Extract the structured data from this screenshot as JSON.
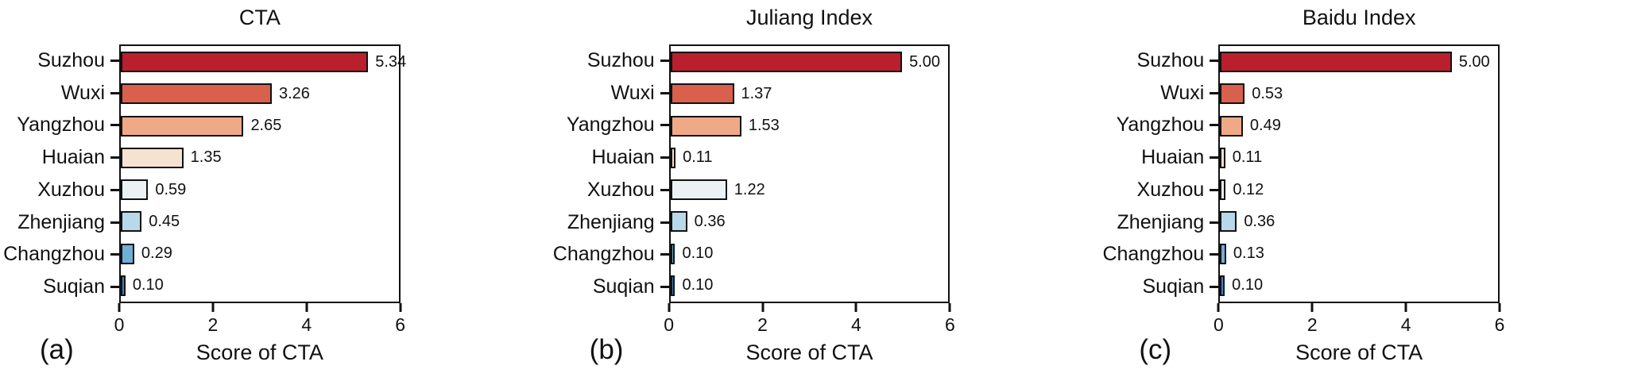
{
  "palette": {
    "bar_colors": [
      "#b91f2c",
      "#d8604d",
      "#efa987",
      "#f6e2d1",
      "#ebf2f5",
      "#b7d9e9",
      "#6fb0d6",
      "#3d86c0"
    ],
    "bar_border": "#111111",
    "axis_color": "#111111"
  },
  "chart_data": [
    {
      "id": "a",
      "type": "bar",
      "orientation": "horizontal",
      "title": "CTA",
      "panel_label": "(a)",
      "categories": [
        "Suzhou",
        "Wuxi",
        "Yangzhou",
        "Huaian",
        "Xuzhou",
        "Zhenjiang",
        "Changzhou",
        "Suqian"
      ],
      "values": [
        5.34,
        3.26,
        2.65,
        1.35,
        0.59,
        0.45,
        0.29,
        0.1
      ],
      "value_labels": [
        "5.34",
        "3.26",
        "2.65",
        "1.35",
        "0.59",
        "0.45",
        "0.29",
        "0.10"
      ],
      "xlabel": "Score of CTA",
      "xlim": [
        0,
        6
      ],
      "xticks": [
        0,
        2,
        4,
        6
      ],
      "grid": false,
      "legend": "none"
    },
    {
      "id": "b",
      "type": "bar",
      "orientation": "horizontal",
      "title": "Juliang Index",
      "panel_label": "(b)",
      "categories": [
        "Suzhou",
        "Wuxi",
        "Yangzhou",
        "Huaian",
        "Xuzhou",
        "Zhenjiang",
        "Changzhou",
        "Suqian"
      ],
      "values": [
        5.0,
        1.37,
        1.53,
        0.11,
        1.22,
        0.36,
        0.1,
        0.1
      ],
      "value_labels": [
        "5.00",
        "1.37",
        "1.53",
        "0.11",
        "1.22",
        "0.36",
        "0.10",
        "0.10"
      ],
      "xlabel": "Score of CTA",
      "xlim": [
        0,
        6
      ],
      "xticks": [
        0,
        2,
        4,
        6
      ],
      "grid": false,
      "legend": "none"
    },
    {
      "id": "c",
      "type": "bar",
      "orientation": "horizontal",
      "title": "Baidu Index",
      "panel_label": "(c)",
      "categories": [
        "Suzhou",
        "Wuxi",
        "Yangzhou",
        "Huaian",
        "Xuzhou",
        "Zhenjiang",
        "Changzhou",
        "Suqian"
      ],
      "values": [
        5.0,
        0.53,
        0.49,
        0.11,
        0.12,
        0.36,
        0.13,
        0.1
      ],
      "value_labels": [
        "5.00",
        "0.53",
        "0.49",
        "0.11",
        "0.12",
        "0.36",
        "0.13",
        "0.10"
      ],
      "xlabel": "Score of CTA",
      "xlim": [
        0,
        6
      ],
      "xticks": [
        0,
        2,
        4,
        6
      ],
      "grid": false,
      "legend": "none"
    }
  ]
}
